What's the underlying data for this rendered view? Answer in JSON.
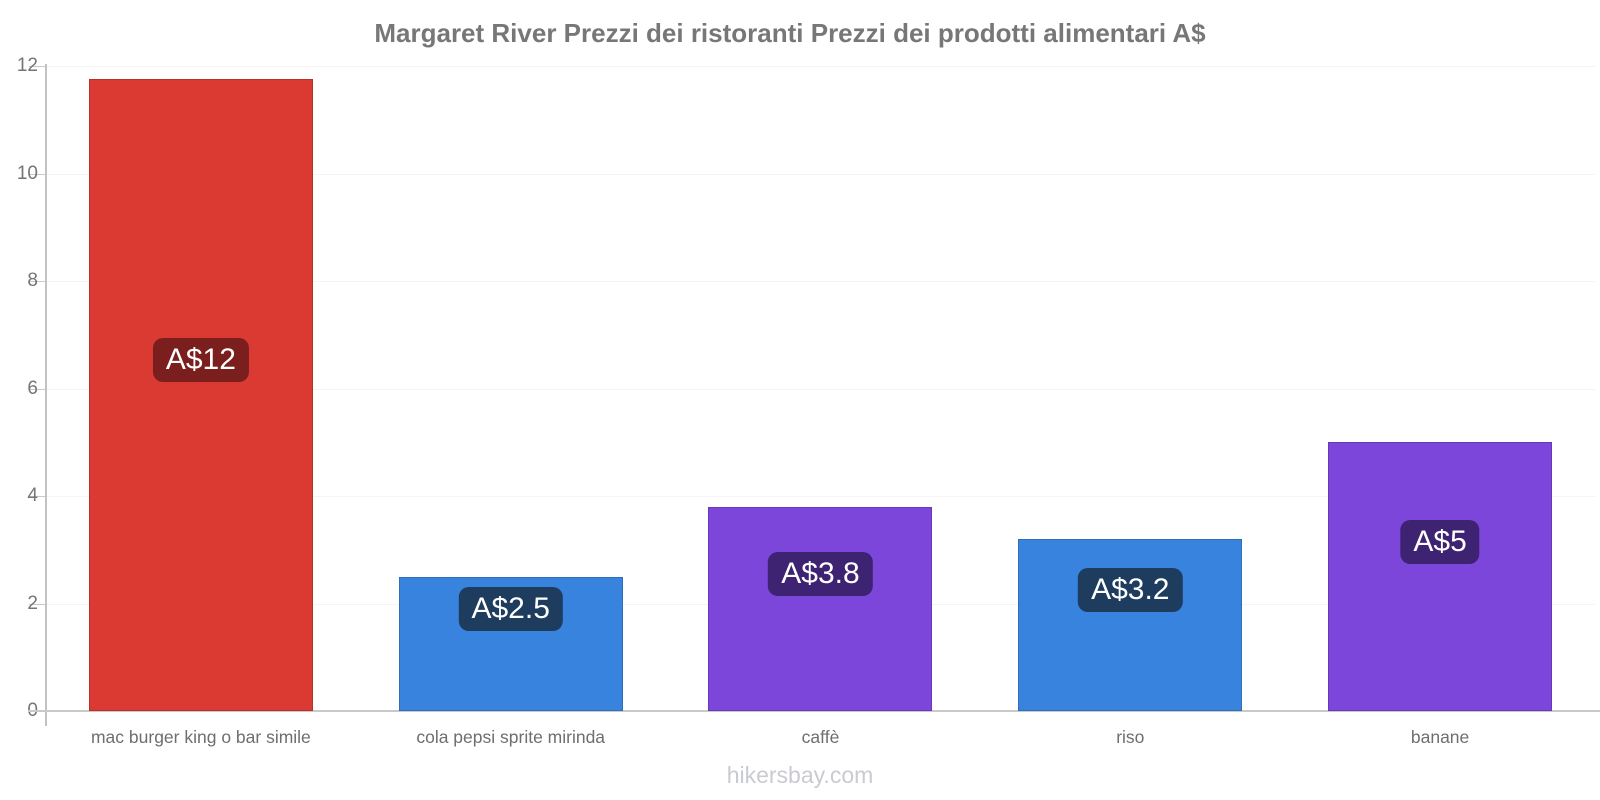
{
  "title": "Margaret River Prezzi dei ristoranti Prezzi dei prodotti alimentari A$",
  "footer": "hikersbay.com",
  "chart_data": {
    "type": "bar",
    "title": "Margaret River Prezzi dei ristoranti Prezzi dei prodotti alimentari A$",
    "categories": [
      "mac burger king o bar simile",
      "cola pepsi sprite mirinda",
      "caffè",
      "riso",
      "banane"
    ],
    "values": [
      11.75,
      2.5,
      3.8,
      3.2,
      5
    ],
    "value_labels": [
      "A$12",
      "A$2.5",
      "A$3.8",
      "A$3.2",
      "A$5"
    ],
    "currency": "A$",
    "xlabel": "",
    "ylabel": "",
    "ylim": [
      0,
      12
    ],
    "yticks": [
      0,
      2,
      4,
      6,
      8,
      10,
      12
    ],
    "grid": "faint horizontal gridlines",
    "legend_position": "none",
    "bar_colors": [
      "#db3a33",
      "#3883de",
      "#7d46da",
      "#3883de",
      "#7d46da"
    ],
    "value_label_bg_colors": [
      "#7b1f1e",
      "#1d3c5e",
      "#3d2371",
      "#1d3c5e",
      "#3d2371"
    ]
  },
  "colors": {
    "title_text": "#777777",
    "axis_text": "#757575",
    "category_text": "#6e6e6e",
    "footer_text": "#c9cad2",
    "axis_line": "#c5c5c5",
    "gridline": "#f4f4f4",
    "background": "#ffffff",
    "value_label_text": "#ffffff"
  }
}
